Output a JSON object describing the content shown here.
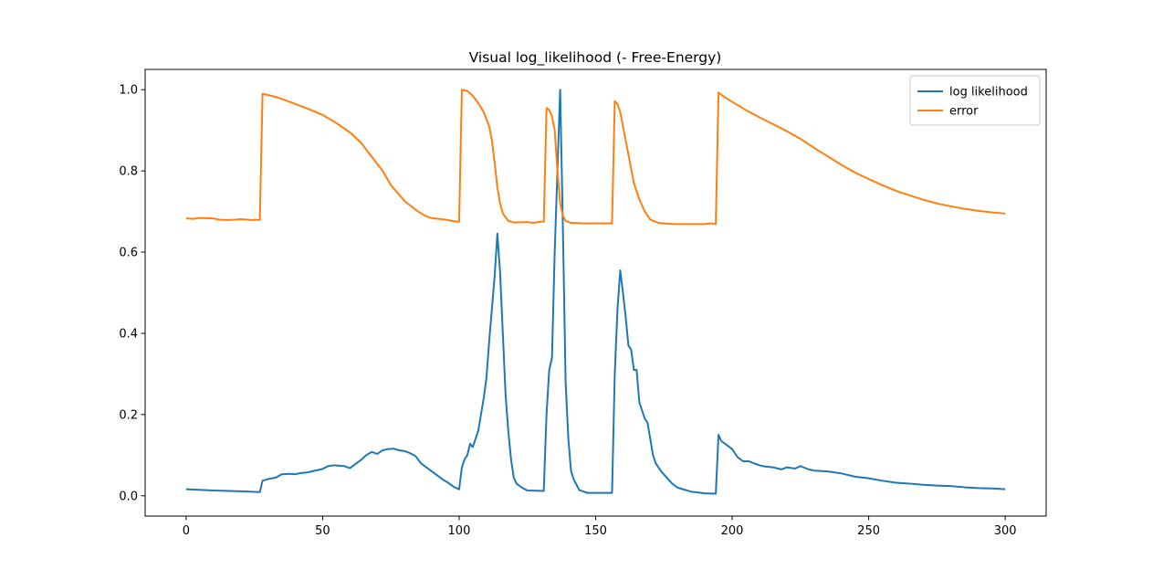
{
  "chart_data": {
    "type": "line",
    "title": "Visual log_likelihood (- Free-Energy)",
    "xlabel": "",
    "ylabel": "",
    "xlim": [
      -15,
      315
    ],
    "ylim": [
      -0.05,
      1.05
    ],
    "x_ticks": [
      0,
      50,
      100,
      150,
      200,
      250,
      300
    ],
    "y_ticks": [
      0.0,
      0.2,
      0.4,
      0.6,
      0.8,
      1.0
    ],
    "x_tick_labels": [
      "0",
      "50",
      "100",
      "150",
      "200",
      "250",
      "300"
    ],
    "y_tick_labels": [
      "0.0",
      "0.2",
      "0.4",
      "0.6",
      "0.8",
      "1.0"
    ],
    "grid": false,
    "legend_position": "top-right",
    "series": [
      {
        "name": "log likelihood",
        "color": "#1f77b4",
        "points": [
          [
            0,
            0.016
          ],
          [
            10,
            0.013
          ],
          [
            20,
            0.011
          ],
          [
            27,
            0.009
          ],
          [
            28,
            0.037
          ],
          [
            30,
            0.041
          ],
          [
            33,
            0.045
          ],
          [
            35,
            0.053
          ],
          [
            38,
            0.054
          ],
          [
            40,
            0.053
          ],
          [
            42,
            0.056
          ],
          [
            44,
            0.057
          ],
          [
            46,
            0.06
          ],
          [
            48,
            0.063
          ],
          [
            50,
            0.066
          ],
          [
            52,
            0.073
          ],
          [
            54,
            0.075
          ],
          [
            56,
            0.074
          ],
          [
            58,
            0.073
          ],
          [
            60,
            0.068
          ],
          [
            62,
            0.078
          ],
          [
            64,
            0.088
          ],
          [
            66,
            0.1
          ],
          [
            68,
            0.108
          ],
          [
            70,
            0.103
          ],
          [
            72,
            0.112
          ],
          [
            74,
            0.115
          ],
          [
            76,
            0.116
          ],
          [
            78,
            0.112
          ],
          [
            80,
            0.11
          ],
          [
            82,
            0.105
          ],
          [
            84,
            0.098
          ],
          [
            86,
            0.08
          ],
          [
            88,
            0.07
          ],
          [
            90,
            0.06
          ],
          [
            92,
            0.05
          ],
          [
            94,
            0.04
          ],
          [
            96,
            0.032
          ],
          [
            98,
            0.022
          ],
          [
            100,
            0.016
          ],
          [
            101,
            0.07
          ],
          [
            102,
            0.09
          ],
          [
            103,
            0.1
          ],
          [
            104,
            0.128
          ],
          [
            105,
            0.12
          ],
          [
            106,
            0.14
          ],
          [
            107,
            0.16
          ],
          [
            108,
            0.2
          ],
          [
            109,
            0.24
          ],
          [
            110,
            0.29
          ],
          [
            111,
            0.38
          ],
          [
            112,
            0.46
          ],
          [
            113,
            0.54
          ],
          [
            114,
            0.646
          ],
          [
            115,
            0.55
          ],
          [
            116,
            0.4
          ],
          [
            117,
            0.25
          ],
          [
            118,
            0.16
          ],
          [
            119,
            0.09
          ],
          [
            120,
            0.045
          ],
          [
            121,
            0.03
          ],
          [
            123,
            0.02
          ],
          [
            125,
            0.013
          ],
          [
            131,
            0.012
          ],
          [
            132,
            0.2
          ],
          [
            133,
            0.31
          ],
          [
            134,
            0.34
          ],
          [
            135,
            0.6
          ],
          [
            136,
            0.8
          ],
          [
            137,
            1.0
          ],
          [
            138,
            0.66
          ],
          [
            139,
            0.28
          ],
          [
            140,
            0.14
          ],
          [
            141,
            0.06
          ],
          [
            142,
            0.04
          ],
          [
            144,
            0.014
          ],
          [
            147,
            0.007
          ],
          [
            150,
            0.007
          ],
          [
            156,
            0.007
          ],
          [
            157,
            0.3
          ],
          [
            158,
            0.46
          ],
          [
            159,
            0.555
          ],
          [
            160,
            0.5
          ],
          [
            161,
            0.44
          ],
          [
            162,
            0.37
          ],
          [
            163,
            0.36
          ],
          [
            164,
            0.31
          ],
          [
            165,
            0.31
          ],
          [
            166,
            0.23
          ],
          [
            167,
            0.21
          ],
          [
            168,
            0.19
          ],
          [
            169,
            0.18
          ],
          [
            170,
            0.14
          ],
          [
            171,
            0.1
          ],
          [
            172,
            0.08
          ],
          [
            174,
            0.06
          ],
          [
            176,
            0.045
          ],
          [
            178,
            0.03
          ],
          [
            180,
            0.02
          ],
          [
            185,
            0.01
          ],
          [
            190,
            0.006
          ],
          [
            194,
            0.005
          ],
          [
            195,
            0.15
          ],
          [
            196,
            0.135
          ],
          [
            198,
            0.125
          ],
          [
            200,
            0.115
          ],
          [
            202,
            0.095
          ],
          [
            204,
            0.085
          ],
          [
            206,
            0.085
          ],
          [
            208,
            0.08
          ],
          [
            210,
            0.075
          ],
          [
            212,
            0.072
          ],
          [
            215,
            0.07
          ],
          [
            218,
            0.065
          ],
          [
            220,
            0.07
          ],
          [
            223,
            0.067
          ],
          [
            225,
            0.073
          ],
          [
            228,
            0.065
          ],
          [
            230,
            0.062
          ],
          [
            235,
            0.06
          ],
          [
            240,
            0.055
          ],
          [
            245,
            0.047
          ],
          [
            250,
            0.043
          ],
          [
            255,
            0.037
          ],
          [
            260,
            0.032
          ],
          [
            265,
            0.03
          ],
          [
            270,
            0.027
          ],
          [
            275,
            0.025
          ],
          [
            280,
            0.024
          ],
          [
            285,
            0.021
          ],
          [
            290,
            0.019
          ],
          [
            295,
            0.018
          ],
          [
            300,
            0.016
          ]
        ]
      },
      {
        "name": "error",
        "color": "#ff7f0e",
        "points": [
          [
            0,
            0.683
          ],
          [
            3,
            0.682
          ],
          [
            4,
            0.684
          ],
          [
            6,
            0.684
          ],
          [
            10,
            0.683
          ],
          [
            12,
            0.68
          ],
          [
            15,
            0.679
          ],
          [
            18,
            0.68
          ],
          [
            20,
            0.681
          ],
          [
            24,
            0.679
          ],
          [
            25,
            0.68
          ],
          [
            27,
            0.679
          ],
          [
            28,
            0.99
          ],
          [
            30,
            0.987
          ],
          [
            33,
            0.982
          ],
          [
            36,
            0.975
          ],
          [
            40,
            0.965
          ],
          [
            45,
            0.952
          ],
          [
            50,
            0.938
          ],
          [
            55,
            0.918
          ],
          [
            60,
            0.895
          ],
          [
            64,
            0.87
          ],
          [
            68,
            0.835
          ],
          [
            72,
            0.8
          ],
          [
            75,
            0.765
          ],
          [
            78,
            0.742
          ],
          [
            80,
            0.726
          ],
          [
            83,
            0.71
          ],
          [
            85,
            0.7
          ],
          [
            88,
            0.688
          ],
          [
            90,
            0.684
          ],
          [
            95,
            0.68
          ],
          [
            98,
            0.676
          ],
          [
            100,
            0.675
          ],
          [
            101,
            1.0
          ],
          [
            103,
            0.997
          ],
          [
            105,
            0.985
          ],
          [
            107,
            0.967
          ],
          [
            109,
            0.945
          ],
          [
            111,
            0.91
          ],
          [
            112,
            0.875
          ],
          [
            113,
            0.82
          ],
          [
            114,
            0.76
          ],
          [
            115,
            0.72
          ],
          [
            116,
            0.695
          ],
          [
            118,
            0.677
          ],
          [
            120,
            0.673
          ],
          [
            125,
            0.674
          ],
          [
            127,
            0.672
          ],
          [
            130,
            0.675
          ],
          [
            131,
            0.675
          ],
          [
            132,
            0.955
          ],
          [
            133,
            0.95
          ],
          [
            134,
            0.935
          ],
          [
            135,
            0.9
          ],
          [
            136,
            0.8
          ],
          [
            137,
            0.72
          ],
          [
            138,
            0.69
          ],
          [
            139,
            0.677
          ],
          [
            141,
            0.672
          ],
          [
            145,
            0.671
          ],
          [
            150,
            0.671
          ],
          [
            154,
            0.671
          ],
          [
            156,
            0.671
          ],
          [
            157,
            0.972
          ],
          [
            158,
            0.965
          ],
          [
            159,
            0.945
          ],
          [
            160,
            0.91
          ],
          [
            162,
            0.84
          ],
          [
            164,
            0.77
          ],
          [
            166,
            0.73
          ],
          [
            168,
            0.7
          ],
          [
            170,
            0.68
          ],
          [
            173,
            0.672
          ],
          [
            176,
            0.67
          ],
          [
            180,
            0.669
          ],
          [
            185,
            0.669
          ],
          [
            190,
            0.669
          ],
          [
            192,
            0.671
          ],
          [
            194,
            0.669
          ],
          [
            195,
            0.993
          ],
          [
            197,
            0.983
          ],
          [
            200,
            0.97
          ],
          [
            205,
            0.95
          ],
          [
            210,
            0.932
          ],
          [
            215,
            0.915
          ],
          [
            220,
            0.898
          ],
          [
            225,
            0.879
          ],
          [
            230,
            0.857
          ],
          [
            235,
            0.836
          ],
          [
            240,
            0.815
          ],
          [
            245,
            0.796
          ],
          [
            250,
            0.78
          ],
          [
            255,
            0.765
          ],
          [
            260,
            0.751
          ],
          [
            265,
            0.74
          ],
          [
            270,
            0.729
          ],
          [
            275,
            0.72
          ],
          [
            280,
            0.713
          ],
          [
            285,
            0.707
          ],
          [
            290,
            0.702
          ],
          [
            295,
            0.698
          ],
          [
            300,
            0.695
          ]
        ]
      }
    ]
  }
}
